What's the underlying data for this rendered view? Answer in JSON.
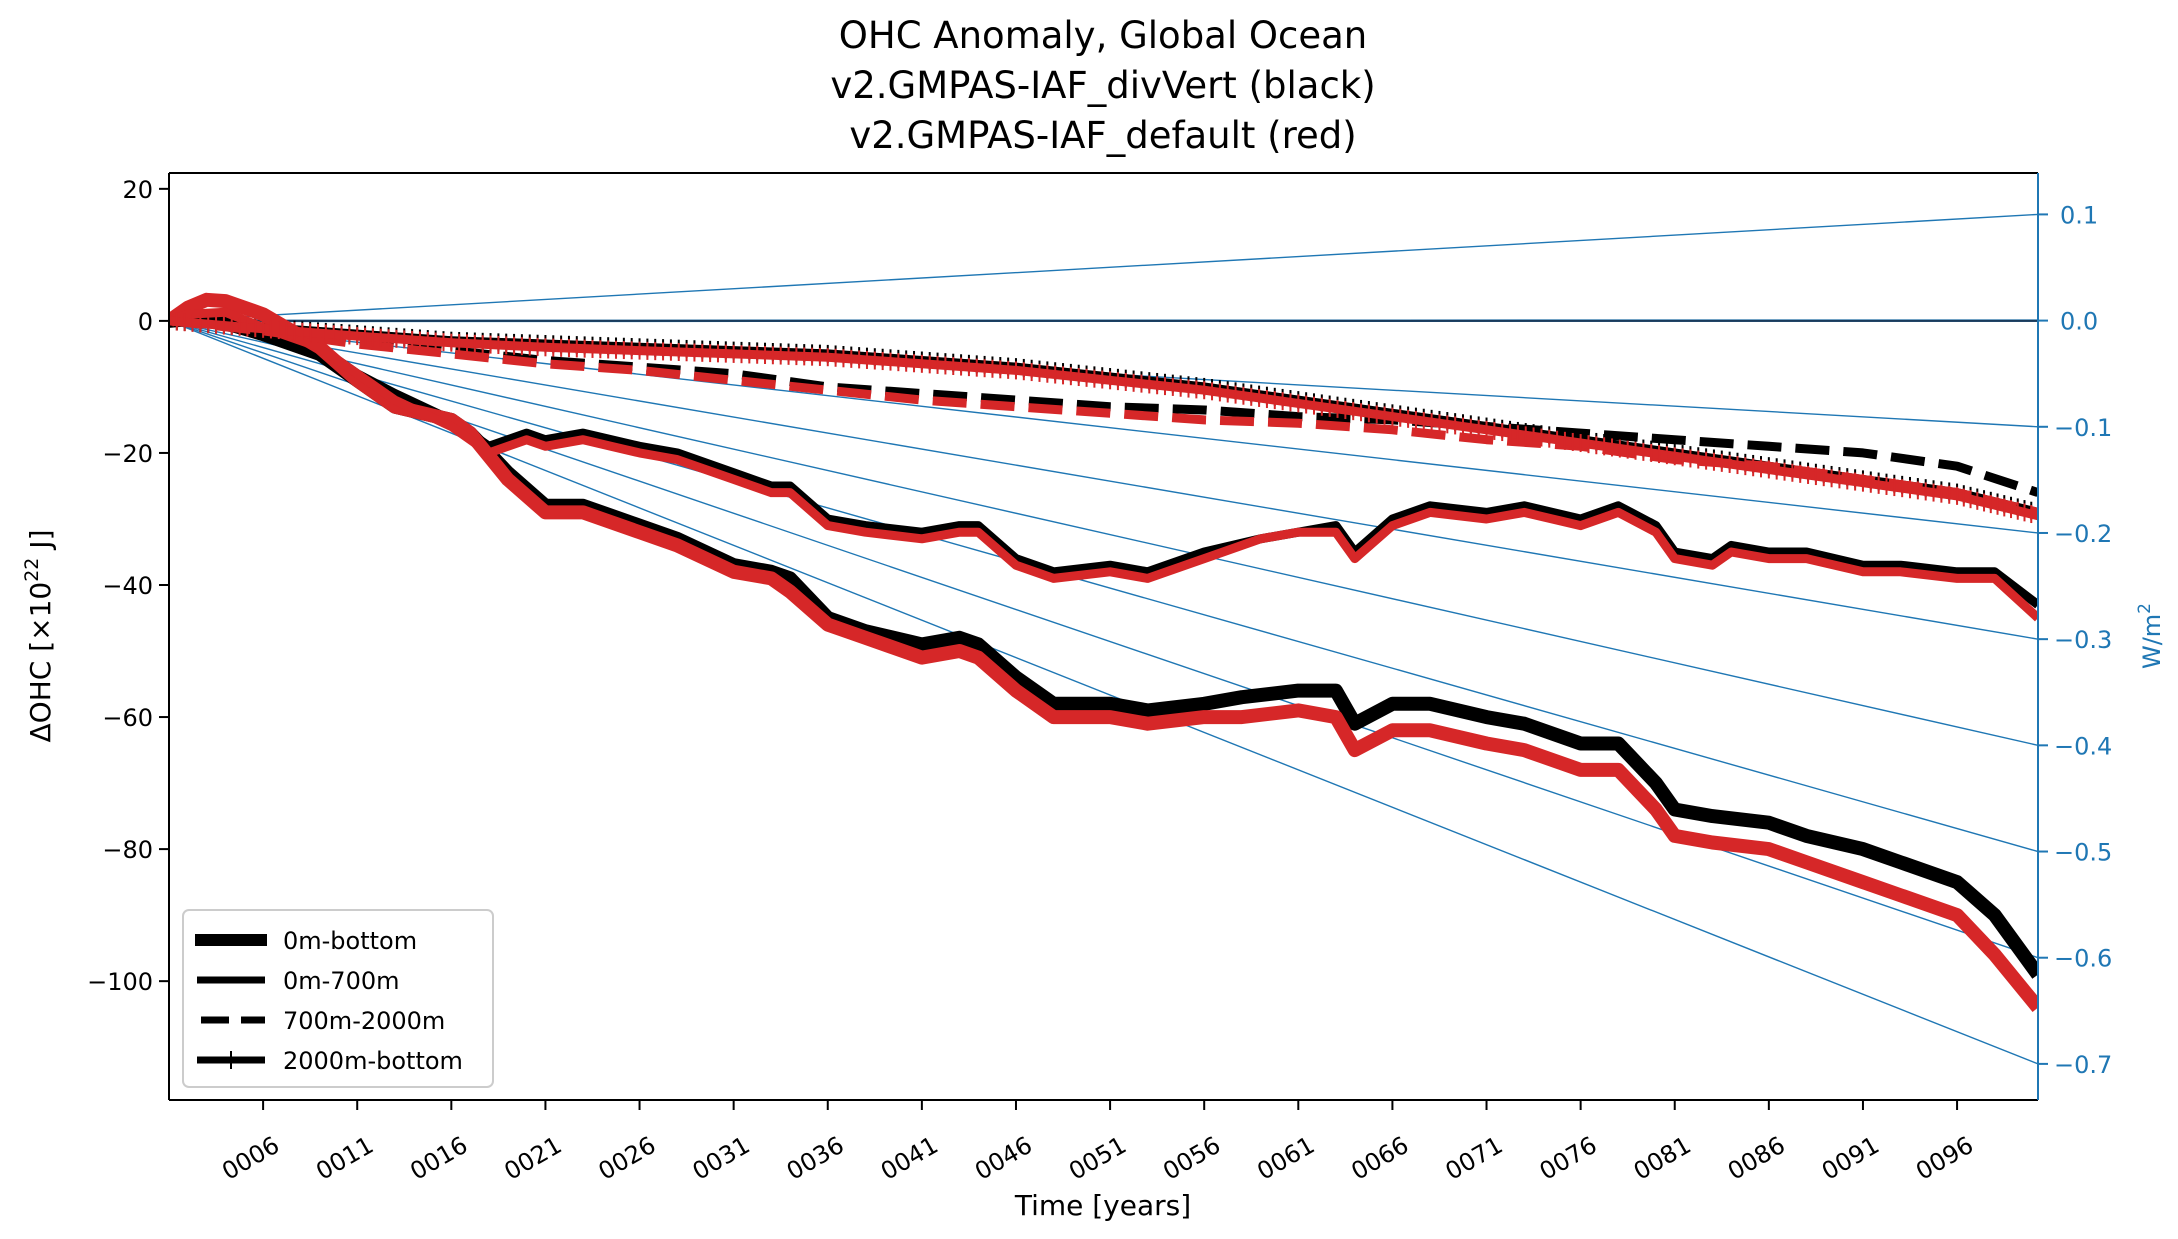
{
  "chart_data": {
    "type": "line",
    "title_lines": [
      "OHC Anomaly, Global Ocean",
      "v2.GMPAS-IAF_divVert (black)",
      "v2.GMPAS-IAF_default (red)"
    ],
    "xlabel": "Time [years]",
    "ylabel": "ΔOHC [×10²² J]",
    "ylabel_parts": {
      "base": "ΔOHC [×10",
      "sup": "22",
      "end": " J]"
    },
    "y2label": {
      "base": "W/m",
      "sup": "2"
    },
    "xlim": [
      1,
      100.3
    ],
    "ylim": [
      -118,
      22.4
    ],
    "y2lim": [
      -0.734,
      0.139
    ],
    "xticks": [
      6,
      11,
      16,
      21,
      26,
      31,
      36,
      41,
      46,
      51,
      56,
      61,
      66,
      71,
      76,
      81,
      86,
      91,
      96
    ],
    "xtick_labels": [
      "0006",
      "0011",
      "0016",
      "0021",
      "0026",
      "0031",
      "0036",
      "0041",
      "0046",
      "0051",
      "0056",
      "0061",
      "0066",
      "0071",
      "0076",
      "0081",
      "0086",
      "0091",
      "0096"
    ],
    "yticks": [
      20,
      0,
      -20,
      -40,
      -60,
      -80,
      -100
    ],
    "ytick_labels": [
      "20",
      "0",
      "−20",
      "−40",
      "−60",
      "−80",
      "−100"
    ],
    "y2ticks": [
      0.1,
      0.0,
      -0.1,
      -0.2,
      -0.3,
      -0.4,
      -0.5,
      -0.6,
      -0.7
    ],
    "y2tick_labels": [
      "0.1",
      "0.0",
      "−0.1",
      "−0.2",
      "−0.3",
      "−0.4",
      "−0.5",
      "−0.6",
      "−0.7"
    ],
    "grid": false,
    "legend_position": "bottom-left",
    "legend": [
      {
        "label": "0m-bottom",
        "style": "thick-solid"
      },
      {
        "label": "0m-700m",
        "style": "solid"
      },
      {
        "label": "700m-2000m",
        "style": "dashed"
      },
      {
        "label": "2000m-bottom",
        "style": "plus-marker"
      }
    ],
    "colors": {
      "divVert": "#000000",
      "default": "#d62728",
      "reference": "#1f77b4"
    },
    "reference_lines_wm2": [
      0.1,
      0.0,
      -0.1,
      -0.2,
      -0.3,
      -0.4,
      -0.5,
      -0.6,
      -0.7
    ],
    "series": [
      {
        "name": "0m-bottom",
        "run": "divVert",
        "style": "thick-solid",
        "x": [
          1,
          3,
          6,
          9,
          11,
          13,
          16,
          17,
          19,
          21,
          23,
          26,
          28,
          31,
          33,
          34,
          36,
          38,
          41,
          43,
          44,
          46,
          48,
          51,
          53,
          56,
          58,
          61,
          63,
          64,
          66,
          68,
          71,
          73,
          76,
          78,
          80,
          81,
          83,
          86,
          88,
          91,
          93,
          96,
          98,
          100.3
        ],
        "y": [
          0,
          0.5,
          -2,
          -5,
          -9,
          -13,
          -15,
          -17,
          -23,
          -28,
          -28,
          -31,
          -33,
          -37,
          -38,
          -39,
          -45,
          -47,
          -49,
          -48,
          -49,
          -54,
          -58,
          -58,
          -59,
          -58,
          -57,
          -56,
          -56,
          -61,
          -58,
          -58,
          -60,
          -61,
          -64,
          -64,
          -70,
          -74,
          -75,
          -76,
          -78,
          -80,
          -82,
          -85,
          -90,
          -99
        ]
      },
      {
        "name": "0m-bottom",
        "run": "default",
        "style": "thick-solid",
        "x": [
          1,
          2,
          3,
          4,
          6,
          9,
          11,
          13,
          16,
          17,
          19,
          21,
          23,
          26,
          28,
          31,
          33,
          34,
          36,
          38,
          41,
          43,
          44,
          46,
          48,
          51,
          53,
          56,
          58,
          61,
          63,
          64,
          66,
          68,
          71,
          73,
          76,
          78,
          80,
          81,
          83,
          86,
          88,
          91,
          93,
          96,
          98,
          100.3
        ],
        "y": [
          0,
          2,
          3.2,
          3,
          1,
          -4,
          -9,
          -13,
          -15,
          -17,
          -24,
          -29,
          -29,
          -32,
          -34,
          -38,
          -39,
          -41,
          -46,
          -48,
          -51,
          -50,
          -51,
          -56,
          -60,
          -60,
          -61,
          -60,
          -60,
          -59,
          -60,
          -65,
          -62,
          -62,
          -64,
          -65,
          -68,
          -68,
          -74,
          -78,
          -79,
          -80,
          -82,
          -85,
          -87,
          -90,
          -96,
          -104
        ]
      },
      {
        "name": "0m-700m",
        "run": "divVert",
        "style": "solid",
        "x": [
          1,
          3,
          6,
          9,
          11,
          13,
          16,
          18,
          20,
          21,
          23,
          26,
          28,
          31,
          33,
          34,
          36,
          38,
          41,
          43,
          44,
          46,
          48,
          51,
          53,
          56,
          59,
          61,
          63,
          64,
          66,
          68,
          71,
          73,
          76,
          78,
          80,
          81,
          83,
          84,
          86,
          88,
          91,
          93,
          96,
          98,
          100.3
        ],
        "y": [
          0,
          0.5,
          -2,
          -4,
          -8,
          -11,
          -15,
          -19,
          -17,
          -18,
          -17,
          -19,
          -20,
          -23,
          -25,
          -25,
          -30,
          -31,
          -32,
          -31,
          -31,
          -36,
          -38,
          -37,
          -38,
          -35,
          -33,
          -32,
          -31,
          -35,
          -30,
          -28,
          -29,
          -28,
          -30,
          -28,
          -31,
          -35,
          -36,
          -34,
          -35,
          -35,
          -37,
          -37,
          -38,
          -38,
          -43
        ]
      },
      {
        "name": "0m-700m",
        "run": "default",
        "style": "solid",
        "x": [
          1,
          2,
          4,
          6,
          9,
          11,
          13,
          16,
          18,
          20,
          21,
          23,
          26,
          28,
          31,
          33,
          34,
          36,
          38,
          41,
          43,
          44,
          46,
          48,
          51,
          53,
          56,
          59,
          61,
          63,
          64,
          66,
          68,
          71,
          73,
          76,
          78,
          80,
          81,
          83,
          84,
          86,
          88,
          91,
          93,
          96,
          98,
          100.3
        ],
        "y": [
          0,
          1,
          1.3,
          -1,
          -4,
          -8,
          -12,
          -16,
          -20,
          -18,
          -19,
          -18,
          -20,
          -21,
          -24,
          -26,
          -26,
          -31,
          -32,
          -33,
          -32,
          -32,
          -37,
          -39,
          -38,
          -39,
          -36,
          -33,
          -32,
          -32,
          -36,
          -31,
          -29,
          -30,
          -29,
          -31,
          -29,
          -32,
          -36,
          -37,
          -35,
          -36,
          -36,
          -38,
          -38,
          -39,
          -39,
          -45
        ]
      },
      {
        "name": "700m-2000m",
        "run": "divVert",
        "style": "dashed",
        "x": [
          1,
          6,
          11,
          16,
          21,
          26,
          31,
          36,
          41,
          46,
          51,
          56,
          61,
          66,
          71,
          76,
          81,
          86,
          91,
          96,
          100.3
        ],
        "y": [
          0,
          -1,
          -3,
          -4.5,
          -6,
          -7,
          -8,
          -10,
          -11,
          -12,
          -13,
          -13.5,
          -14.5,
          -15,
          -16,
          -17,
          -18,
          -19,
          -20,
          -22,
          -26
        ]
      },
      {
        "name": "700m-2000m",
        "run": "default",
        "style": "dashed",
        "x": [
          1,
          6,
          11,
          16,
          21,
          26,
          31,
          36,
          41,
          46,
          51,
          56,
          61,
          66,
          71,
          76,
          81,
          86,
          91,
          96,
          100.3
        ],
        "y": [
          0,
          -1.5,
          -3.5,
          -5,
          -6.5,
          -7.5,
          -9,
          -10.5,
          -12,
          -13,
          -14,
          -15,
          -15.5,
          -16.5,
          -18,
          -19,
          -21,
          -22,
          -24,
          -26,
          -29
        ]
      },
      {
        "name": "2000m-bottom",
        "run": "divVert",
        "style": "plus-marker",
        "x": [
          1,
          6,
          11,
          16,
          21,
          26,
          31,
          36,
          41,
          46,
          51,
          56,
          61,
          66,
          71,
          76,
          81,
          86,
          91,
          96,
          100.3
        ],
        "y": [
          0,
          -1,
          -2,
          -3,
          -3.5,
          -4,
          -4.5,
          -5,
          -6,
          -7,
          -8.5,
          -10,
          -12,
          -14,
          -16,
          -18,
          -20,
          -22,
          -24,
          -26,
          -29
        ]
      },
      {
        "name": "2000m-bottom",
        "run": "default",
        "style": "plus-marker",
        "x": [
          1,
          6,
          11,
          16,
          21,
          26,
          31,
          36,
          41,
          46,
          51,
          56,
          61,
          66,
          71,
          76,
          81,
          86,
          91,
          96,
          100.3
        ],
        "y": [
          0,
          -1.2,
          -2.3,
          -3.3,
          -4,
          -4.5,
          -5,
          -5.5,
          -6.5,
          -7.5,
          -9,
          -10.5,
          -12.5,
          -14.5,
          -16.5,
          -18.5,
          -20.5,
          -22.5,
          -24.5,
          -26.5,
          -29.5
        ]
      }
    ]
  }
}
